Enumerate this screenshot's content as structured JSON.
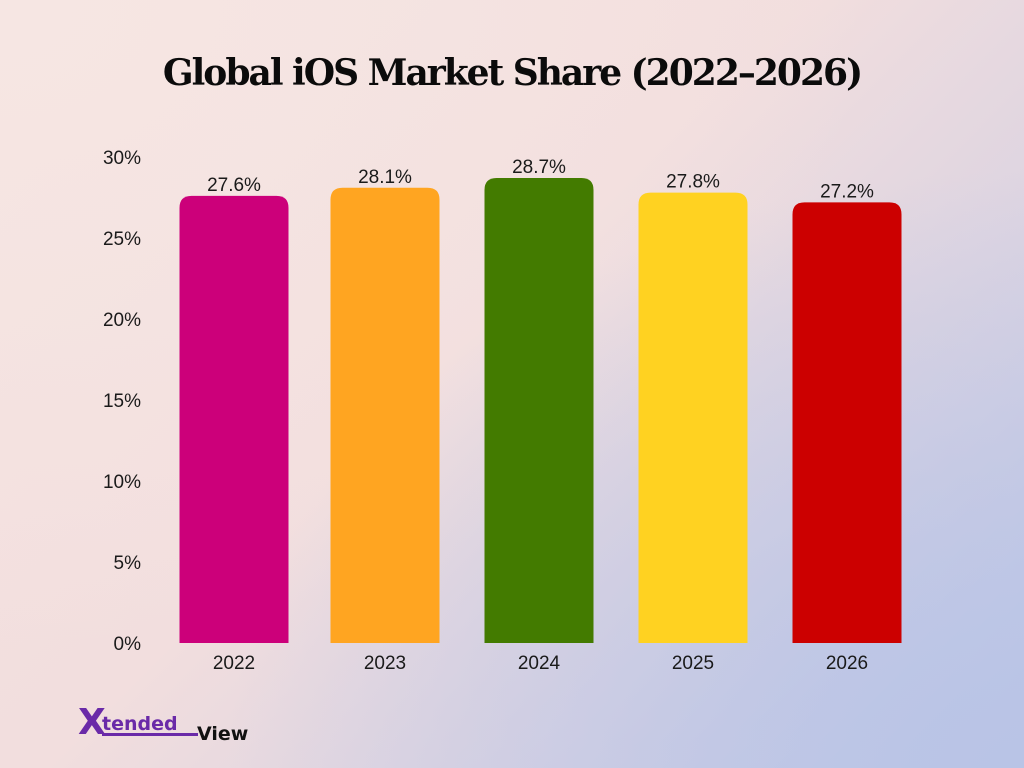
{
  "chart_data": {
    "type": "bar",
    "title": "Global iOS Market Share (2022–2026)",
    "categories": [
      "2022",
      "2023",
      "2024",
      "2025",
      "2026"
    ],
    "values": [
      27.6,
      28.1,
      28.7,
      27.8,
      27.2
    ],
    "data_labels": [
      "27.6%",
      "28.1%",
      "28.7%",
      "27.8%",
      "27.2%"
    ],
    "bar_colors": [
      "#cc007a",
      "#ffa521",
      "#437b00",
      "#ffd221",
      "#cc0000"
    ],
    "ylim": [
      0,
      30
    ],
    "yticks": [
      0,
      5,
      10,
      15,
      20,
      25,
      30
    ],
    "ytick_labels": [
      "0%",
      "5%",
      "10%",
      "15%",
      "20%",
      "25%",
      "30%"
    ],
    "xlabel": "",
    "ylabel": "",
    "grid": false,
    "legend": false
  },
  "brand": {
    "logo_text_x": "X",
    "logo_text_tended": "tended",
    "logo_text_view": "View",
    "logo_color": "#6a2aa8"
  }
}
